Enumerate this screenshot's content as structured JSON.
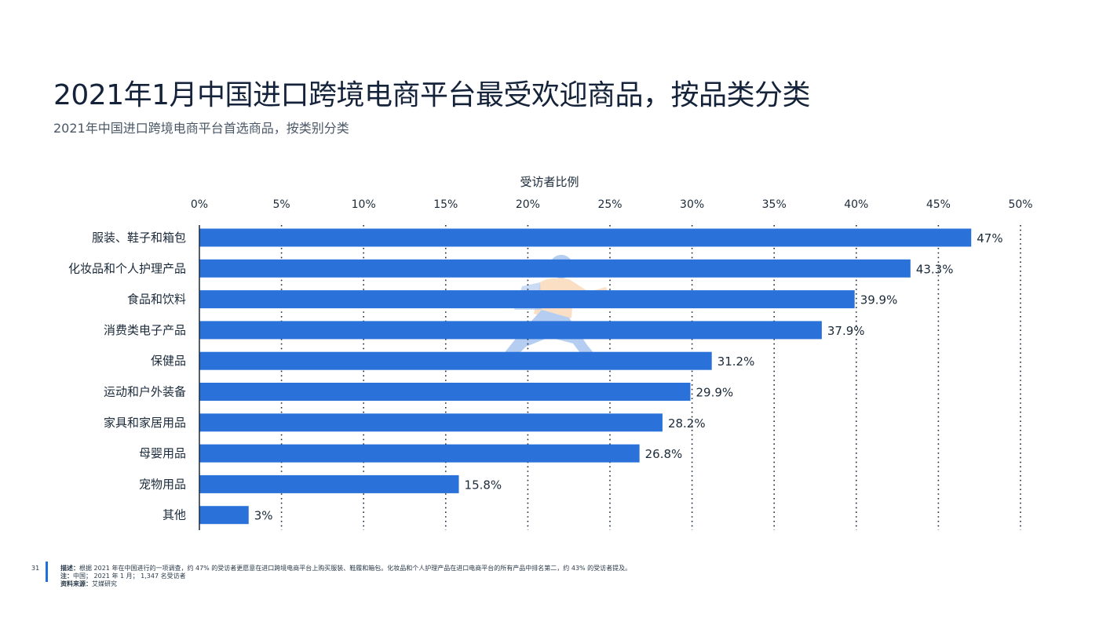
{
  "header": {
    "title": "2021年1月中国进口跨境电商平台最受欢迎商品，按品类分类",
    "subtitle": "2021年中国进口跨境电商平台首选商品，按类别分类"
  },
  "chart_data": {
    "type": "bar",
    "orientation": "horizontal",
    "xlabel": "受访者比例",
    "xlim": [
      0,
      50
    ],
    "x_ticks": [
      0,
      5,
      10,
      15,
      20,
      25,
      30,
      35,
      40,
      45,
      50
    ],
    "x_tick_labels": [
      "0%",
      "5%",
      "10%",
      "15%",
      "20%",
      "25%",
      "30%",
      "35%",
      "40%",
      "45%",
      "50%"
    ],
    "grid": "vertical-dotted",
    "categories": [
      "服装、鞋子和箱包",
      "化妆品和个人护理产品",
      "食品和饮料",
      "消费类电子产品",
      "保健品",
      "运动和户外装备",
      "家具和家居用品",
      "母婴用品",
      "宠物用品",
      "其他"
    ],
    "values": [
      47,
      43.3,
      39.9,
      37.9,
      31.2,
      29.9,
      28.2,
      26.8,
      15.8,
      3
    ],
    "value_labels": [
      "47%",
      "43.3%",
      "39.9%",
      "37.9%",
      "31.2%",
      "29.9%",
      "28.2%",
      "26.8%",
      "15.8%",
      "3%"
    ],
    "bar_color": "#2a72d9"
  },
  "footer": {
    "page_number": "31",
    "description_label": "描述：",
    "description_text": "根据 2021 年在中国进行的一项调查，约 47% 的受访者更愿意在进口跨境电商平台上购买服装、鞋履和箱包。化妆品和个人护理产品在进口电商平台的所有产品中排名第二，约 43% 的受访者提及。",
    "note_label": "注：",
    "note_text": "中国； 2021 年 1 月； 1,347 名受访者",
    "source_label": "资料来源：",
    "source_text": "艾媒研究"
  }
}
